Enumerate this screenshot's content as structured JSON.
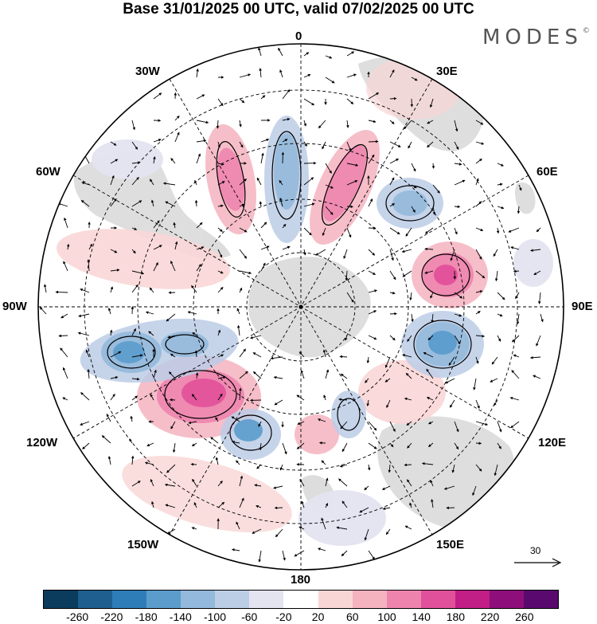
{
  "header": {
    "title": "Base 31/01/2025 00 UTC, valid 07/02/2025 00 UTC",
    "brand": "MODES",
    "brand_mark": "©"
  },
  "map": {
    "projection": "south-polar-stereographic",
    "longitude_labels": [
      "0",
      "30E",
      "60E",
      "90E",
      "120E",
      "150E",
      "180",
      "150W",
      "120W",
      "90W",
      "60W",
      "30W"
    ],
    "graticule": "dashed",
    "field_colors": {
      "negative": "#4f8fc6",
      "positive": "#e0509a",
      "land": "#dcdcdc"
    }
  },
  "reference_vector": {
    "label": "30"
  },
  "colorbar": {
    "colors": [
      "#0b3c5d",
      "#1f5f8f",
      "#2f7db8",
      "#5b9ccc",
      "#93b9dc",
      "#bccde6",
      "#e4e3f0",
      "#ffffff",
      "#f9d6d6",
      "#f4b3bf",
      "#ee84ae",
      "#e1509a",
      "#c11e86",
      "#8e0f7b",
      "#5a0a6f"
    ],
    "labels": [
      "-260",
      "-220",
      "-180",
      "-140",
      "-100",
      "-60",
      "-20",
      "20",
      "60",
      "100",
      "140",
      "180",
      "220",
      "260"
    ]
  }
}
